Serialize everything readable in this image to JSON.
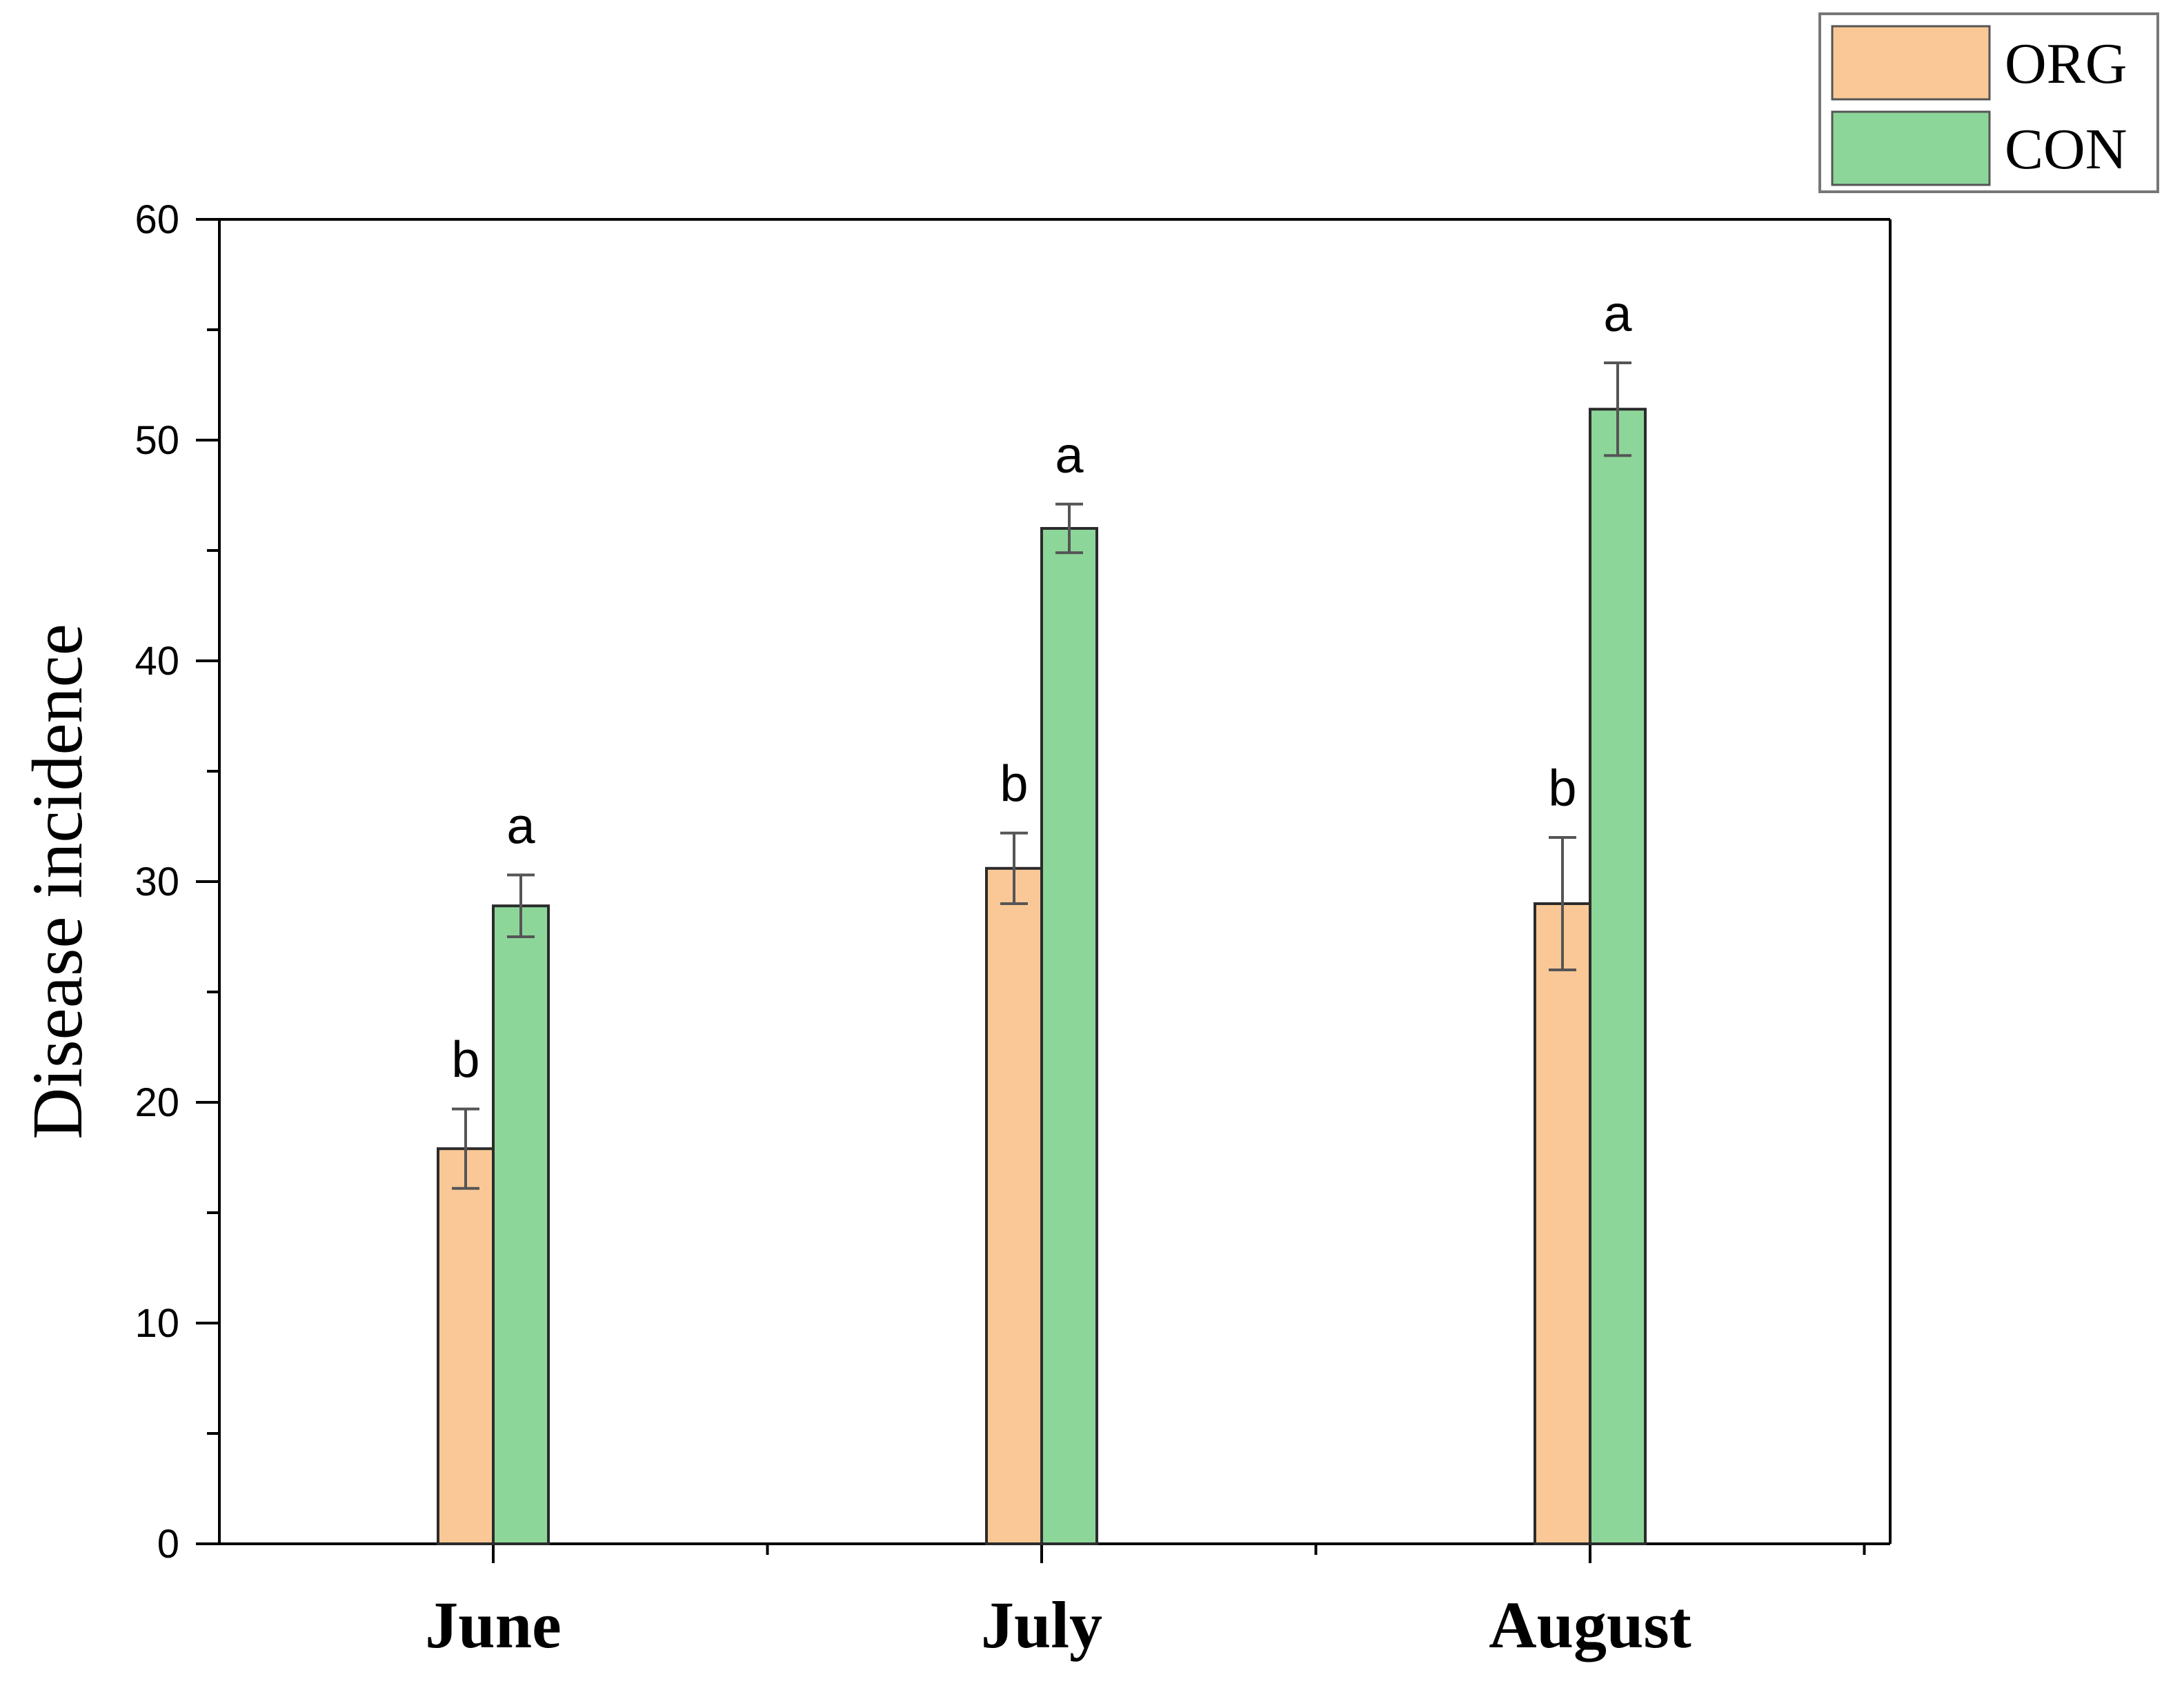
{
  "chart_data": {
    "type": "bar",
    "categories": [
      "June",
      "July",
      "August"
    ],
    "ylabel": "Disease incidence",
    "xlabel": "",
    "ylim": [
      0,
      60
    ],
    "yticks": [
      0,
      10,
      20,
      30,
      40,
      50,
      60
    ],
    "grid": false,
    "legend_position": "top-right",
    "series": [
      {
        "name": "ORG",
        "color": "#F9C896",
        "values": [
          17.9,
          30.6,
          29.0
        ],
        "errors": [
          1.8,
          1.6,
          3.0
        ],
        "significance": [
          "b",
          "b",
          "b"
        ]
      },
      {
        "name": "CON",
        "color": "#8DD69A",
        "values": [
          28.9,
          46.0,
          51.4
        ],
        "errors": [
          1.4,
          1.1,
          2.1
        ],
        "significance": [
          "a",
          "a",
          "a"
        ]
      }
    ]
  }
}
